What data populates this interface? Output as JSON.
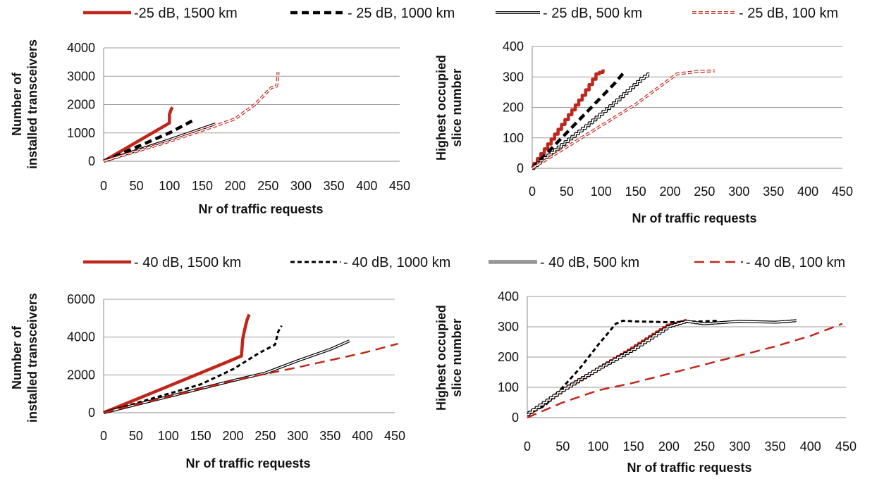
{
  "chart_data": [
    {
      "type": "line",
      "panel": "top-left",
      "xlabel": "Nr of traffic requests",
      "ylabel": "Number of installed transceivers",
      "xlim": [
        0,
        450
      ],
      "ylim": [
        0,
        4000
      ],
      "xticks": [
        "0",
        "50",
        "100",
        "150",
        "200",
        "250",
        "300",
        "350",
        "400",
        "450"
      ],
      "yticks": [
        "0",
        "1000",
        "2000",
        "3000",
        "4000"
      ],
      "grid": "horizontal",
      "legend": "top",
      "series": [
        {
          "name": "-25 dB, 1500 km",
          "x": [
            0,
            100,
            100,
            103,
            105
          ],
          "y": [
            0,
            1350,
            1650,
            1850,
            1900
          ],
          "style": "solid-thick",
          "color": "#c0271c"
        },
        {
          "name": "- 25 dB, 1000 km",
          "x": [
            0,
            50,
            100,
            135
          ],
          "y": [
            0,
            500,
            1000,
            1430
          ],
          "style": "dashed-thick",
          "color": "#000000"
        },
        {
          "name": "- 25 dB, 500 km",
          "x": [
            0,
            50,
            100,
            170
          ],
          "y": [
            0,
            380,
            760,
            1320
          ],
          "style": "double",
          "color": "#000000"
        },
        {
          "name": "- 25 dB, 100 km",
          "x": [
            0,
            100,
            170,
            200,
            230,
            255,
            263,
            265,
            265
          ],
          "y": [
            0,
            700,
            1250,
            1500,
            2000,
            2600,
            2650,
            3000,
            3150
          ],
          "style": "double-dashed",
          "color": "#c0271c"
        }
      ]
    },
    {
      "type": "line",
      "panel": "top-right",
      "xlabel": "Nr of traffic requests",
      "ylabel": "Highest occupied slice number",
      "xlim": [
        0,
        450
      ],
      "ylim": [
        0,
        400
      ],
      "xticks": [
        "0",
        "50",
        "100",
        "150",
        "200",
        "250",
        "300",
        "350",
        "400",
        "450"
      ],
      "yticks": [
        "0",
        "100",
        "200",
        "300",
        "400"
      ],
      "grid": "horizontal",
      "series": [
        {
          "name": "-25 dB, 1500 km",
          "x": [
            0,
            25,
            50,
            75,
            95,
            105
          ],
          "y": [
            0,
            80,
            160,
            240,
            310,
            320
          ],
          "style": "solid-thick-stepped",
          "color": "#c0271c"
        },
        {
          "name": "- 25 dB, 1000 km",
          "x": [
            0,
            30,
            60,
            90,
            120,
            135
          ],
          "y": [
            0,
            70,
            140,
            210,
            280,
            320
          ],
          "style": "dashed-thick",
          "color": "#000000"
        },
        {
          "name": "- 25 dB, 500 km",
          "x": [
            0,
            40,
            80,
            120,
            160,
            170
          ],
          "y": [
            0,
            70,
            140,
            215,
            295,
            310
          ],
          "style": "double-stepped",
          "color": "#000000"
        },
        {
          "name": "- 25 dB, 100 km",
          "x": [
            0,
            50,
            100,
            150,
            210,
            240,
            265
          ],
          "y": [
            0,
            70,
            140,
            210,
            310,
            318,
            320
          ],
          "style": "double-dashed",
          "color": "#c0271c"
        }
      ]
    },
    {
      "type": "line",
      "panel": "bottom-left",
      "xlabel": "Nr of traffic requests",
      "ylabel": "Number of installed transceivers",
      "xlim": [
        0,
        450
      ],
      "ylim": [
        0,
        6000
      ],
      "xticks": [
        "0",
        "50",
        "100",
        "150",
        "200",
        "250",
        "300",
        "350",
        "400",
        "450"
      ],
      "yticks": [
        "0",
        "2000",
        "4000",
        "6000"
      ],
      "grid": "horizontal",
      "legend": "top",
      "series": [
        {
          "name": "- 40 dB, 1500 km",
          "x": [
            0,
            100,
            185,
            213,
            215,
            218,
            222,
            225
          ],
          "y": [
            0,
            1400,
            2600,
            3000,
            3900,
            4400,
            4950,
            5200
          ],
          "style": "solid-thick",
          "color": "#c0271c"
        },
        {
          "name": "- 40 dB, 1000 km",
          "x": [
            0,
            75,
            150,
            200,
            240,
            265,
            270,
            275
          ],
          "y": [
            0,
            750,
            1500,
            2300,
            3150,
            3600,
            4300,
            4600
          ],
          "style": "dashed-short",
          "color": "#000000"
        },
        {
          "name": "- 40 dB, 500 km",
          "x": [
            0,
            100,
            200,
            250,
            300,
            350,
            380
          ],
          "y": [
            0,
            850,
            1700,
            2100,
            2750,
            3350,
            3800
          ],
          "style": "double",
          "color": "#000000"
        },
        {
          "name": "- 40 dB, 100 km",
          "x": [
            0,
            100,
            200,
            300,
            400,
            455
          ],
          "y": [
            0,
            850,
            1700,
            2400,
            3150,
            3650
          ],
          "style": "dashed-long",
          "color": "#c0271c"
        }
      ]
    },
    {
      "type": "line",
      "panel": "bottom-right",
      "xlabel": "Nr of traffic requests",
      "ylabel": "Highest occupied slice number",
      "xlim": [
        0,
        450
      ],
      "ylim": [
        0,
        400
      ],
      "xticks": [
        "0",
        "50",
        "100",
        "150",
        "200",
        "250",
        "300",
        "350",
        "400",
        "450"
      ],
      "yticks": [
        "0",
        "100",
        "200",
        "300",
        "400"
      ],
      "grid": "horizontal",
      "series": [
        {
          "name": "- 40 dB, 1500 km",
          "x": [
            0,
            20,
            50,
            100,
            150,
            200,
            225
          ],
          "y": [
            10,
            40,
            90,
            160,
            230,
            305,
            320
          ],
          "style": "solid-thick-stepped",
          "color": "#c0271c"
        },
        {
          "name": "- 40 dB, 1000 km",
          "x": [
            0,
            25,
            50,
            75,
            100,
            125,
            135,
            150,
            200,
            250,
            270
          ],
          "y": [
            10,
            40,
            100,
            165,
            240,
            310,
            320,
            318,
            315,
            318,
            320
          ],
          "style": "dashed-short",
          "color": "#000000"
        },
        {
          "name": "- 40 dB, 500 km",
          "x": [
            0,
            50,
            100,
            150,
            200,
            225,
            250,
            300,
            350,
            380
          ],
          "y": [
            10,
            90,
            160,
            225,
            300,
            318,
            310,
            318,
            315,
            320
          ],
          "style": "double-stepped",
          "color": "#000000"
        },
        {
          "name": "- 40 dB, 100 km",
          "x": [
            0,
            50,
            100,
            150,
            200,
            250,
            300,
            350,
            400,
            445
          ],
          "y": [
            0,
            50,
            90,
            115,
            145,
            175,
            205,
            235,
            270,
            310
          ],
          "style": "dashed-long",
          "color": "#c0271c"
        }
      ]
    }
  ],
  "legends": [
    [
      "-25 dB, 1500 km",
      "- 25 dB, 1000 km",
      "- 25 dB, 500 km",
      "- 25 dB, 100 km"
    ],
    [
      "- 40 dB, 1500 km",
      "- 40 dB, 1000 km",
      "- 40 dB, 500 km",
      "- 40 dB, 100 km"
    ]
  ]
}
